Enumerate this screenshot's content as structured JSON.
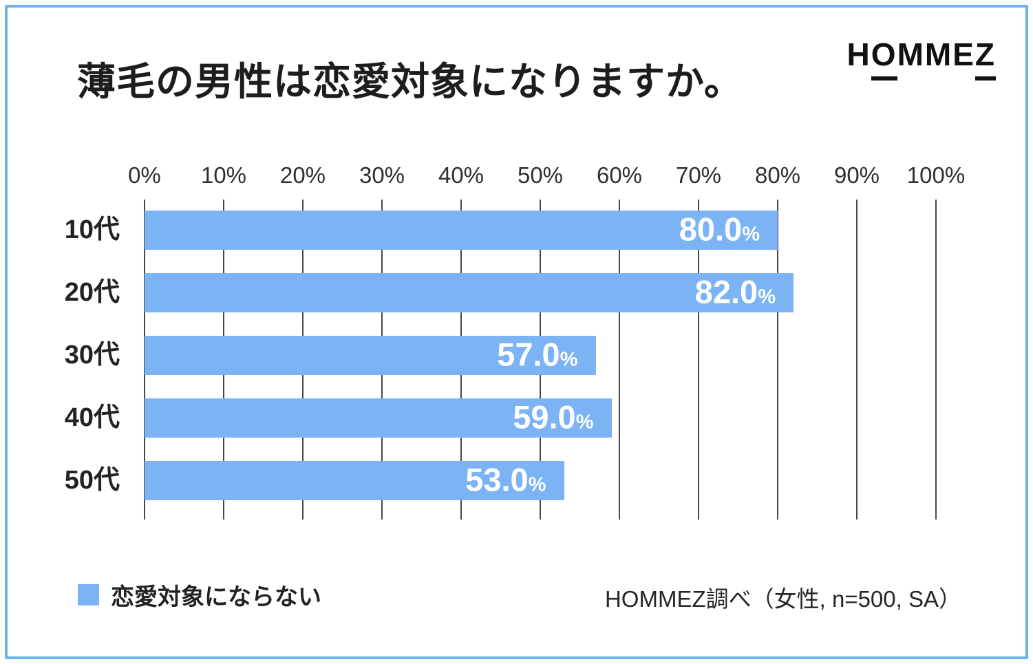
{
  "title": "薄毛の男性は恋愛対象になりますか。",
  "logo": {
    "part1": "H",
    "part2": "O",
    "part3": "MME",
    "part4": "Z"
  },
  "chart_data": {
    "type": "bar",
    "orientation": "horizontal",
    "title": "薄毛の男性は恋愛対象になりますか。",
    "categories": [
      "10代",
      "20代",
      "30代",
      "40代",
      "50代"
    ],
    "values": [
      80.0,
      82.0,
      57.0,
      59.0,
      53.0
    ],
    "value_labels": [
      "80.0",
      "82.0",
      "57.0",
      "59.0",
      "53.0"
    ],
    "unit": "%",
    "xlim": [
      0,
      100
    ],
    "x_ticks": [
      "0%",
      "10%",
      "20%",
      "30%",
      "40%",
      "50%",
      "60%",
      "70%",
      "80%",
      "90%",
      "100%"
    ],
    "grid": "vertical-only",
    "legend_label": "恋愛対象にならない",
    "legend_position": "bottom-left",
    "source": "HOMMEZ調べ（女性, n=500, SA）"
  },
  "colors": {
    "bar": "#7bb3f5",
    "frame": "#6db3f2",
    "grid": "#474747",
    "text": "#1d1d1d",
    "value_label": "#ffffff"
  }
}
